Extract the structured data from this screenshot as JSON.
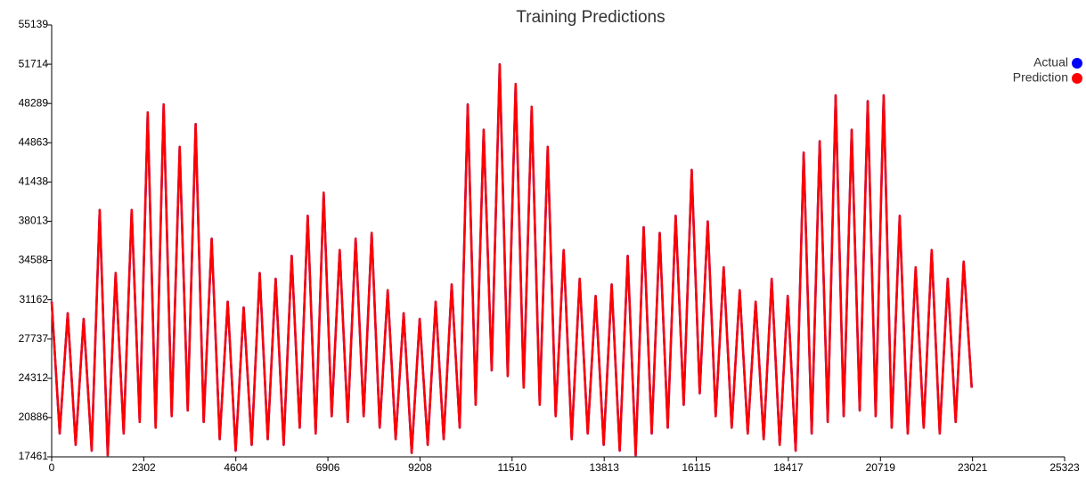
{
  "chart_data": {
    "type": "line",
    "title": "Training Predictions",
    "x": [
      0,
      200,
      400,
      600,
      800,
      1000,
      1200,
      1400,
      1600,
      1800,
      2000,
      2200,
      2400,
      2600,
      2800,
      3000,
      3200,
      3400,
      3600,
      3800,
      4000,
      4200,
      4400,
      4600,
      4800,
      5000,
      5200,
      5400,
      5600,
      5800,
      6000,
      6200,
      6400,
      6600,
      6800,
      7000,
      7200,
      7400,
      7600,
      7800,
      8000,
      8200,
      8400,
      8600,
      8800,
      9000,
      9200,
      9400,
      9600,
      9800,
      10000,
      10200,
      10400,
      10600,
      10800,
      11000,
      11200,
      11400,
      11600,
      11800,
      12000,
      12200,
      12400,
      12600,
      12800,
      13000,
      13200,
      13400,
      13600,
      13800,
      14000,
      14200,
      14400,
      14600,
      14800,
      15000,
      15200,
      15400,
      15600,
      15800,
      16000,
      16200,
      16400,
      16600,
      16800,
      17000,
      17200,
      17400,
      17600,
      17800,
      18000,
      18200,
      18400,
      18600,
      18800,
      19000,
      19200,
      19400,
      19600,
      19800,
      20000,
      20200,
      20400,
      20600,
      20800,
      21000,
      21200,
      21400,
      21600,
      21800,
      22000,
      22200,
      22400,
      22600,
      22800,
      23000
    ],
    "series": [
      {
        "name": "Actual",
        "color": "#0000ff",
        "values": [
          31000,
          19500,
          30000,
          18500,
          29500,
          18000,
          39000,
          17600,
          33500,
          19500,
          39000,
          20500,
          47500,
          20000,
          48200,
          21000,
          44500,
          21500,
          46500,
          20500,
          36500,
          19000,
          31000,
          18000,
          30500,
          18500,
          33500,
          19000,
          33000,
          18500,
          35000,
          20000,
          38500,
          19500,
          40500,
          21000,
          35500,
          20500,
          36500,
          21000,
          37000,
          20000,
          32000,
          19000,
          30000,
          17800,
          29500,
          18500,
          31000,
          19000,
          32500,
          20000,
          48200,
          22000,
          46000,
          25000,
          51700,
          24500,
          50000,
          23500,
          48000,
          22000,
          44500,
          21000,
          35500,
          19000,
          33000,
          19500,
          31500,
          18500,
          32500,
          18000,
          35000,
          17600,
          37500,
          19500,
          37000,
          20000,
          38500,
          22000,
          42500,
          23000,
          38000,
          21000,
          34000,
          20000,
          32000,
          19500,
          31000,
          19000,
          33000,
          18500,
          31500,
          18000,
          44000,
          19500,
          45000,
          20500,
          49000,
          21000,
          46000,
          21500,
          48500,
          21000,
          49000,
          20000,
          38500,
          19500,
          34000,
          20000,
          35500,
          19500,
          33000,
          20500,
          34500,
          23500
        ]
      },
      {
        "name": "Prediction",
        "color": "#ff0000",
        "values": [
          31000,
          19500,
          30000,
          18500,
          29500,
          18000,
          39000,
          17600,
          33500,
          19500,
          39000,
          20500,
          47500,
          20000,
          48200,
          21000,
          44500,
          21500,
          46500,
          20500,
          36500,
          19000,
          31000,
          18000,
          30500,
          18500,
          33500,
          19000,
          33000,
          18500,
          35000,
          20000,
          38500,
          19500,
          40500,
          21000,
          35500,
          20500,
          36500,
          21000,
          37000,
          20000,
          32000,
          19000,
          30000,
          17800,
          29500,
          18500,
          31000,
          19000,
          32500,
          20000,
          48200,
          22000,
          46000,
          25000,
          51700,
          24500,
          50000,
          23500,
          48000,
          22000,
          44500,
          21000,
          35500,
          19000,
          33000,
          19500,
          31500,
          18500,
          32500,
          18000,
          35000,
          17600,
          37500,
          19500,
          37000,
          20000,
          38500,
          22000,
          42500,
          23000,
          38000,
          21000,
          34000,
          20000,
          32000,
          19500,
          31000,
          19000,
          33000,
          18500,
          31500,
          18000,
          44000,
          19500,
          45000,
          20500,
          49000,
          21000,
          46000,
          21500,
          48500,
          21000,
          49000,
          20000,
          38500,
          19500,
          34000,
          20000,
          35500,
          19500,
          33000,
          20500,
          34500,
          23500
        ]
      }
    ],
    "xlim": [
      0,
      25323
    ],
    "xticks": [
      0,
      2302,
      4604,
      6906,
      9208,
      11510,
      13813,
      16115,
      18417,
      20719,
      23021,
      25323
    ],
    "ylim": [
      17461,
      55139
    ],
    "yticks": [
      17461,
      20886,
      24312,
      27737,
      31162,
      34588,
      38013,
      41438,
      44863,
      48289,
      51714,
      55139
    ],
    "legend": "top-right"
  }
}
